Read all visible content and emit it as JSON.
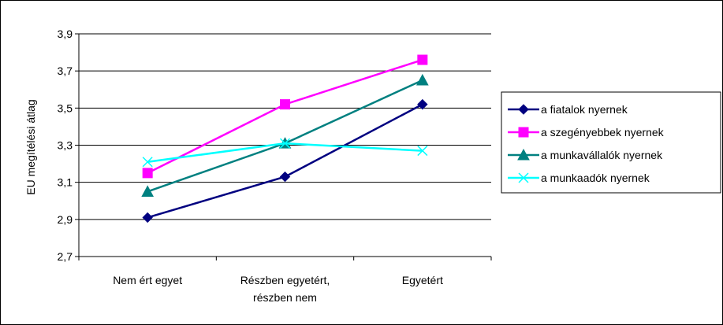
{
  "chart_data": {
    "type": "line",
    "title": "",
    "xlabel": "",
    "ylabel": "EU megítélési átlag",
    "categories": [
      [
        "Nem ért egyet"
      ],
      [
        "Részben egyetért,",
        "részben nem"
      ],
      [
        "Egyetért"
      ]
    ],
    "y_ticks": [
      "2,7",
      "2,9",
      "3,1",
      "3,3",
      "3,5",
      "3,7",
      "3,9"
    ],
    "ylim": [
      2.7,
      3.9
    ],
    "grid": true,
    "legend_position": "right",
    "series": [
      {
        "name": "a fiatalok nyernek",
        "values": [
          2.91,
          3.13,
          3.52
        ],
        "color": "#000080",
        "marker": "diamond"
      },
      {
        "name": "a szegényebbek nyernek",
        "values": [
          3.15,
          3.52,
          3.76
        ],
        "color": "#FF00FF",
        "marker": "square"
      },
      {
        "name": "a munkavállalók nyernek",
        "values": [
          3.05,
          3.31,
          3.65
        ],
        "color": "#008080",
        "marker": "triangle"
      },
      {
        "name": "a munkaadók nyernek",
        "values": [
          3.21,
          3.31,
          3.27
        ],
        "color": "#00FFFF",
        "marker": "x"
      }
    ]
  }
}
